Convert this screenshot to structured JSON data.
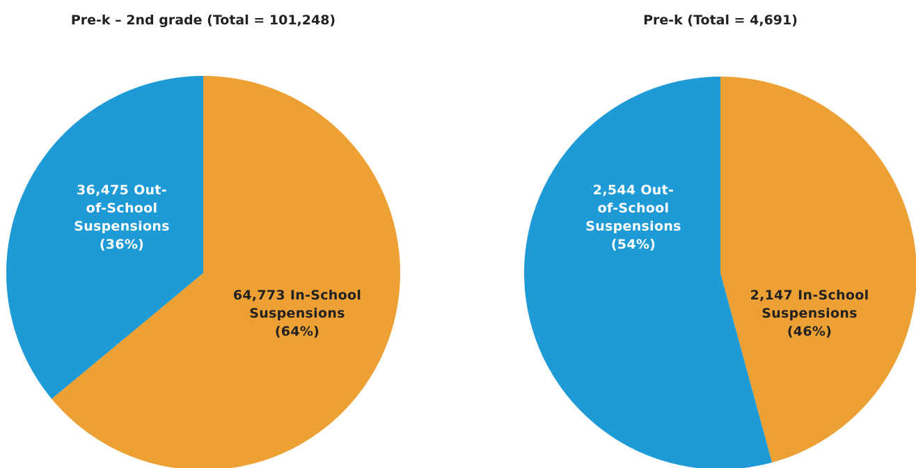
{
  "chart_data": [
    {
      "type": "pie",
      "title": "Pre-k – 2nd grade (Total = 101,248)",
      "categories": [
        "In-School Suspensions",
        "Out-of-School Suspensions"
      ],
      "values": [
        64773,
        36475
      ],
      "value_labels": [
        "64,773",
        "36,475"
      ],
      "percent_labels": [
        "(64%)",
        "(36%)"
      ],
      "colors": [
        "#eda033",
        "#1e9ad6"
      ]
    },
    {
      "type": "pie",
      "title": "Pre-k (Total = 4,691)",
      "categories": [
        "In-School Suspensions",
        "Out-of-School Suspensions"
      ],
      "values": [
        2147,
        2544
      ],
      "value_labels": [
        "2,147",
        "2,544"
      ],
      "percent_labels": [
        "(46%)",
        "(54%)"
      ],
      "colors": [
        "#eda033",
        "#1e9ad6"
      ]
    }
  ]
}
